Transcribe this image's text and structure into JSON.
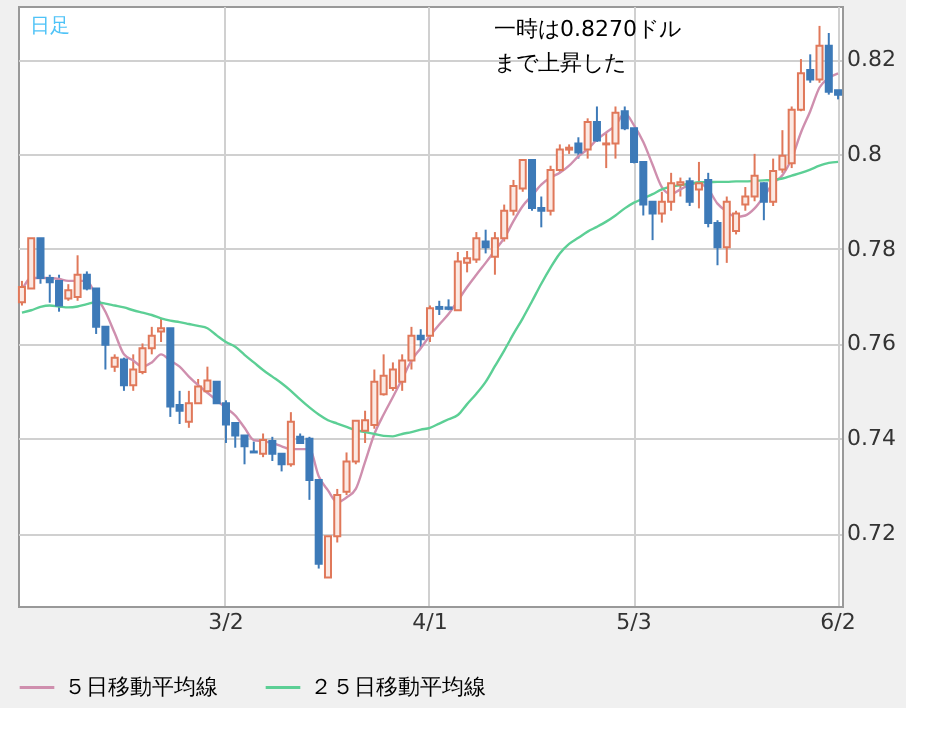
{
  "chart_data": {
    "type": "candlestick",
    "categories": [
      null,
      null,
      null,
      null,
      null,
      null,
      null,
      null,
      null,
      null,
      null,
      null,
      null,
      null,
      null,
      null,
      null,
      null,
      null,
      null,
      null,
      null,
      "3/2",
      null,
      null,
      null,
      null,
      null,
      null,
      null,
      null,
      null,
      null,
      null,
      null,
      null,
      null,
      null,
      null,
      null,
      null,
      null,
      null,
      null,
      "4/1",
      null,
      null,
      null,
      null,
      null,
      null,
      null,
      null,
      null,
      null,
      null,
      null,
      null,
      null,
      null,
      null,
      null,
      null,
      null,
      null,
      null,
      "5/3",
      null,
      null,
      null,
      null,
      null,
      null,
      null,
      null,
      null,
      null,
      null,
      null,
      null,
      null,
      null,
      null,
      null,
      null,
      null,
      null,
      null,
      "6/2"
    ],
    "ohlc": [
      [
        0.7687,
        0.7732,
        0.768,
        0.7719
      ],
      [
        0.7716,
        0.7822,
        0.7716,
        0.7822
      ],
      [
        0.7822,
        0.7822,
        0.7726,
        0.7738
      ],
      [
        0.7738,
        0.7745,
        0.7686,
        0.7729
      ],
      [
        0.7732,
        0.7745,
        0.7667,
        0.768
      ],
      [
        0.7695,
        0.7725,
        0.769,
        0.7712
      ],
      [
        0.7698,
        0.7786,
        0.769,
        0.7745
      ],
      [
        0.7745,
        0.7752,
        0.7712,
        0.7716
      ],
      [
        0.7716,
        0.7716,
        0.762,
        0.7635
      ],
      [
        0.7635,
        0.7635,
        0.7545,
        0.7597
      ],
      [
        0.7551,
        0.7577,
        0.754,
        0.757
      ],
      [
        0.7566,
        0.757,
        0.75,
        0.7512
      ],
      [
        0.7512,
        0.7577,
        0.75,
        0.7545
      ],
      [
        0.754,
        0.76,
        0.7535,
        0.759
      ],
      [
        0.759,
        0.7635,
        0.7577,
        0.7616
      ],
      [
        0.7625,
        0.7654,
        0.7603,
        0.7632
      ],
      [
        0.7632,
        0.7632,
        0.7445,
        0.7467
      ],
      [
        0.747,
        0.75,
        0.743,
        0.7458
      ],
      [
        0.7435,
        0.75,
        0.7422,
        0.7474
      ],
      [
        0.7474,
        0.7525,
        0.7474,
        0.7509
      ],
      [
        0.7499,
        0.7551,
        0.7495,
        0.7522
      ],
      [
        0.7519,
        0.7519,
        0.7474,
        0.7474
      ],
      [
        0.7474,
        0.748,
        0.739,
        0.7429
      ],
      [
        0.7432,
        0.7432,
        0.738,
        0.7406
      ],
      [
        0.7406,
        0.7406,
        0.7345,
        0.7383
      ],
      [
        0.7372,
        0.7393,
        0.737,
        0.737
      ],
      [
        0.7367,
        0.741,
        0.736,
        0.7396
      ],
      [
        0.7394,
        0.7403,
        0.7352,
        0.7367
      ],
      [
        0.7367,
        0.7367,
        0.733,
        0.7345
      ],
      [
        0.7345,
        0.7455,
        0.734,
        0.7435
      ],
      [
        0.7403,
        0.741,
        0.739,
        0.739
      ],
      [
        0.7399,
        0.7403,
        0.727,
        0.7312
      ],
      [
        0.7312,
        0.7312,
        0.7125,
        0.7135
      ],
      [
        0.7106,
        0.7193,
        0.7106,
        0.7193
      ],
      [
        0.7193,
        0.7293,
        0.718,
        0.728
      ],
      [
        0.7287,
        0.737,
        0.728,
        0.7351
      ],
      [
        0.7351,
        0.7437,
        0.7345,
        0.7437
      ],
      [
        0.7416,
        0.7458,
        0.739,
        0.7438
      ],
      [
        0.7428,
        0.7545,
        0.742,
        0.7519
      ],
      [
        0.7493,
        0.7577,
        0.749,
        0.7532
      ],
      [
        0.7506,
        0.756,
        0.75,
        0.7545
      ],
      [
        0.7519,
        0.7577,
        0.75,
        0.7564
      ],
      [
        0.7564,
        0.7635,
        0.7545,
        0.7616
      ],
      [
        0.7616,
        0.763,
        0.759,
        0.7609
      ],
      [
        0.7616,
        0.768,
        0.7603,
        0.7674
      ],
      [
        0.7677,
        0.769,
        0.766,
        0.7673
      ],
      [
        0.7676,
        0.7693,
        0.767,
        0.7673
      ],
      [
        0.767,
        0.7793,
        0.767,
        0.7773
      ],
      [
        0.777,
        0.7795,
        0.775,
        0.778
      ],
      [
        0.7777,
        0.7835,
        0.777,
        0.7822
      ],
      [
        0.7815,
        0.784,
        0.779,
        0.7803
      ],
      [
        0.7783,
        0.7835,
        0.7745,
        0.7822
      ],
      [
        0.7822,
        0.7893,
        0.7815,
        0.788
      ],
      [
        0.788,
        0.7945,
        0.787,
        0.7932
      ],
      [
        0.7927,
        0.7987,
        0.792,
        0.7987
      ],
      [
        0.7987,
        0.7987,
        0.788,
        0.7886
      ],
      [
        0.7886,
        0.791,
        0.7845,
        0.788
      ],
      [
        0.788,
        0.7975,
        0.787,
        0.7966
      ],
      [
        0.7966,
        0.802,
        0.796,
        0.8009
      ],
      [
        0.8009,
        0.802,
        0.8,
        0.8013
      ],
      [
        0.8022,
        0.8035,
        0.799,
        0.8003
      ],
      [
        0.8009,
        0.8075,
        0.799,
        0.8067
      ],
      [
        0.8067,
        0.81,
        0.8025,
        0.8028
      ],
      [
        0.802,
        0.8045,
        0.797,
        0.8022
      ],
      [
        0.8022,
        0.81,
        0.799,
        0.8087
      ],
      [
        0.809,
        0.81,
        0.805,
        0.8054
      ],
      [
        0.8054,
        0.8054,
        0.798,
        0.7983
      ],
      [
        0.7983,
        0.7983,
        0.787,
        0.7893
      ],
      [
        0.7899,
        0.7899,
        0.7818,
        0.7874
      ],
      [
        0.7874,
        0.792,
        0.7855,
        0.7899
      ],
      [
        0.7899,
        0.796,
        0.788,
        0.7938
      ],
      [
        0.7935,
        0.795,
        0.791,
        0.794
      ],
      [
        0.7942,
        0.795,
        0.789,
        0.7899
      ],
      [
        0.7925,
        0.7983,
        0.7885,
        0.7938
      ],
      [
        0.7945,
        0.796,
        0.7845,
        0.7854
      ],
      [
        0.7854,
        0.786,
        0.7765,
        0.7803
      ],
      [
        0.7803,
        0.791,
        0.777,
        0.7899
      ],
      [
        0.7837,
        0.788,
        0.783,
        0.7874
      ],
      [
        0.7893,
        0.793,
        0.788,
        0.791
      ],
      [
        0.791,
        0.8,
        0.79,
        0.7954
      ],
      [
        0.7938,
        0.794,
        0.786,
        0.7899
      ],
      [
        0.7899,
        0.799,
        0.789,
        0.7964
      ],
      [
        0.7967,
        0.805,
        0.796,
        0.7996
      ],
      [
        0.798,
        0.81,
        0.797,
        0.8093
      ],
      [
        0.8093,
        0.82,
        0.809,
        0.817
      ],
      [
        0.8177,
        0.821,
        0.815,
        0.8157
      ],
      [
        0.8157,
        0.827,
        0.815,
        0.8228
      ],
      [
        0.8228,
        0.8255,
        0.8125,
        0.8131
      ],
      [
        0.8134,
        0.8134,
        0.8115,
        0.8125
      ]
    ],
    "colors": [
      "#e0785a",
      "#e0785a",
      "#3d7ab8",
      "#3d7ab8",
      "#3d7ab8",
      "#e0785a",
      "#e0785a",
      "#3d7ab8",
      "#3d7ab8",
      "#3d7ab8",
      "#e0785a",
      "#3d7ab8",
      "#e0785a",
      "#e0785a",
      "#e0785a",
      "#e0785a",
      "#3d7ab8",
      "#3d7ab8",
      "#e0785a",
      "#e0785a",
      "#e0785a",
      "#3d7ab8",
      "#3d7ab8",
      "#3d7ab8",
      "#3d7ab8",
      "#3d7ab8",
      "#e0785a",
      "#3d7ab8",
      "#3d7ab8",
      "#e0785a",
      "#3d7ab8",
      "#3d7ab8",
      "#3d7ab8",
      "#e0785a",
      "#e0785a",
      "#e0785a",
      "#e0785a",
      "#e0785a",
      "#e0785a",
      "#e0785a",
      "#e0785a",
      "#e0785a",
      "#e0785a",
      "#3d7ab8",
      "#e0785a",
      "#3d7ab8",
      "#3d7ab8",
      "#e0785a",
      "#e0785a",
      "#e0785a",
      "#3d7ab8",
      "#e0785a",
      "#e0785a",
      "#e0785a",
      "#e0785a",
      "#3d7ab8",
      "#3d7ab8",
      "#e0785a",
      "#e0785a",
      "#e0785a",
      "#3d7ab8",
      "#e0785a",
      "#3d7ab8",
      "#e0785a",
      "#e0785a",
      "#3d7ab8",
      "#3d7ab8",
      "#3d7ab8",
      "#3d7ab8",
      "#e0785a",
      "#e0785a",
      "#e0785a",
      "#3d7ab8",
      "#e0785a",
      "#3d7ab8",
      "#3d7ab8",
      "#e0785a",
      "#e0785a",
      "#e0785a",
      "#e0785a",
      "#3d7ab8",
      "#e0785a",
      "#e0785a",
      "#e0785a",
      "#e0785a",
      "#3d7ab8",
      "#e0785a",
      "#3d7ab8",
      "#3d7ab8"
    ],
    "series": [
      {
        "name": "５日移動平均線",
        "type": "line",
        "color": "#cf8fae",
        "values": [
          0.7712,
          0.7738,
          0.7738,
          0.7738,
          0.7736,
          0.7732,
          0.7732,
          0.7732,
          0.77,
          0.7667,
          0.7622,
          0.7577,
          0.7564,
          0.7551,
          0.756,
          0.7577,
          0.7564,
          0.7551,
          0.753,
          0.7512,
          0.7496,
          0.748,
          0.7464,
          0.7448,
          0.7422,
          0.7396,
          0.7394,
          0.739,
          0.7383,
          0.7377,
          0.7377,
          0.7377,
          0.732,
          0.729,
          0.7265,
          0.7275,
          0.7293,
          0.735,
          0.7409,
          0.745,
          0.7487,
          0.7525,
          0.7564,
          0.759,
          0.7616,
          0.764,
          0.7662,
          0.769,
          0.7719,
          0.7745,
          0.777,
          0.7796,
          0.7822,
          0.7858,
          0.789,
          0.7912,
          0.7935,
          0.795,
          0.796,
          0.7975,
          0.7995,
          0.801,
          0.803,
          0.8045,
          0.806,
          0.8086,
          0.806,
          0.8025,
          0.7977,
          0.793,
          0.7915,
          0.7925,
          0.7935,
          0.7938,
          0.7925,
          0.7895,
          0.7878,
          0.7867,
          0.787,
          0.7885,
          0.791,
          0.7938,
          0.7955,
          0.799,
          0.8045,
          0.809,
          0.814,
          0.816,
          0.817
        ]
      },
      {
        "name": "２５日移動平均線",
        "type": "line",
        "color": "#5ccf95",
        "values": [
          0.7665,
          0.767,
          0.7677,
          0.768,
          0.7678,
          0.7676,
          0.7678,
          0.7683,
          0.7687,
          0.7684,
          0.768,
          0.7676,
          0.767,
          0.7665,
          0.766,
          0.7653,
          0.7648,
          0.7645,
          0.7641,
          0.7637,
          0.7632,
          0.7617,
          0.7603,
          0.7593,
          0.7576,
          0.756,
          0.7544,
          0.753,
          0.7516,
          0.75,
          0.7482,
          0.7465,
          0.745,
          0.7438,
          0.7431,
          0.7424,
          0.7417,
          0.7413,
          0.7409,
          0.7405,
          0.7404,
          0.7409,
          0.7413,
          0.7418,
          0.7422,
          0.7431,
          0.744,
          0.7449,
          0.7472,
          0.7494,
          0.7519,
          0.7552,
          0.7585,
          0.762,
          0.7653,
          0.7689,
          0.7726,
          0.776,
          0.779,
          0.781,
          0.7823,
          0.7836,
          0.7846,
          0.7857,
          0.787,
          0.7885,
          0.7897,
          0.7906,
          0.7915,
          0.7925,
          0.7931,
          0.7934,
          0.7937,
          0.794,
          0.794,
          0.7941,
          0.7941,
          0.7942,
          0.7942,
          0.7943,
          0.7944,
          0.7945,
          0.7948,
          0.7954,
          0.796,
          0.7967,
          0.7975,
          0.7981,
          0.7983
        ]
      }
    ],
    "ylim": [
      0.7046,
      0.8312
    ],
    "yticks": [
      0.72,
      0.74,
      0.76,
      0.78,
      0.8,
      0.82
    ],
    "grid": true,
    "legend": "bottom",
    "annotations": [
      "日足",
      "一時は0.8270ドル",
      "まで上昇した"
    ]
  }
}
